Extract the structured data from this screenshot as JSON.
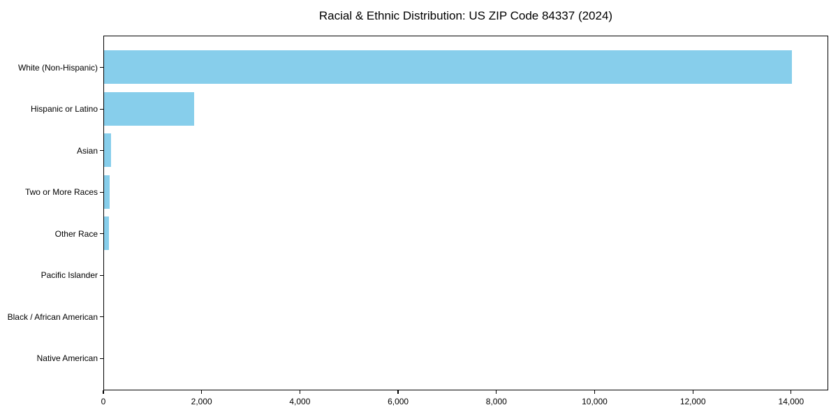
{
  "title": "Racial & Ethnic Distribution: US ZIP Code 84337 (2024)",
  "colors": {
    "bar": "#87CEEB",
    "axis": "#000000",
    "background": "#FFFFFF",
    "text": "#000000"
  },
  "chart_data": {
    "type": "bar",
    "orientation": "horizontal",
    "title": "Racial & Ethnic Distribution: US ZIP Code 84337 (2024)",
    "categories": [
      "White (Non-Hispanic)",
      "Hispanic or Latino",
      "Asian",
      "Two or More Races",
      "Other Race",
      "Pacific Islander",
      "Black / African American",
      "Native American"
    ],
    "values": [
      14045,
      1832,
      142,
      114,
      100,
      0,
      0,
      0
    ],
    "xlabel": "",
    "ylabel": "",
    "xlim": [
      0,
      14755
    ],
    "xticks": [
      0,
      2000,
      4000,
      6000,
      8000,
      10000,
      12000,
      14000
    ],
    "xtick_labels": [
      "0",
      "2,000",
      "4,000",
      "6,000",
      "8,000",
      "10,000",
      "12,000",
      "14,000"
    ],
    "grid": false,
    "legend": false,
    "bar_color": "#87CEEB"
  }
}
